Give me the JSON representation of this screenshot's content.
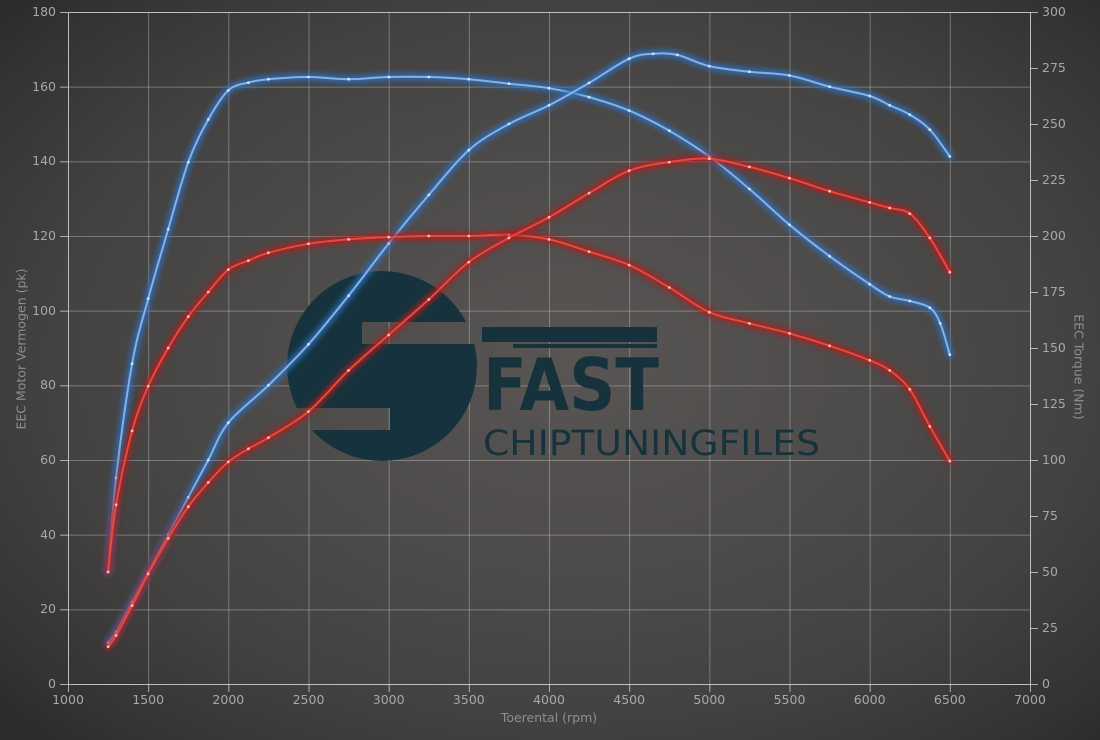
{
  "chart_data": {
    "type": "line",
    "title": "",
    "xlabel": "Toerental (rpm)",
    "ylabel_left": "EEC Motor Vermogen (pk)",
    "ylabel_right": "EEC Torque (Nm)",
    "xlim": [
      1000,
      7000
    ],
    "ylim_left": [
      0,
      180
    ],
    "ylim_right": [
      0,
      300
    ],
    "x_ticks": [
      1000,
      1500,
      2000,
      2500,
      3000,
      3500,
      4000,
      4500,
      5000,
      5500,
      6000,
      6500,
      7000
    ],
    "y_ticks_left": [
      0,
      20,
      40,
      60,
      80,
      100,
      120,
      140,
      160,
      180
    ],
    "y_ticks_right": [
      0,
      25,
      50,
      75,
      100,
      125,
      150,
      175,
      200,
      225,
      250,
      275,
      300
    ],
    "grid": true,
    "legend": "none",
    "series": [
      {
        "id": "blue-torque",
        "unit": "Nm",
        "axis": "right",
        "color_core": "#84b2e4",
        "color_glow": "#2e6fc0",
        "color_dot": "#d9e8f8",
        "points": [
          [
            1250,
            50
          ],
          [
            1300,
            92
          ],
          [
            1400,
            143
          ],
          [
            1500,
            172
          ],
          [
            1625,
            203
          ],
          [
            1750,
            233
          ],
          [
            1875,
            252
          ],
          [
            2000,
            265
          ],
          [
            2125,
            268.5
          ],
          [
            2250,
            270
          ],
          [
            2500,
            271
          ],
          [
            2750,
            270
          ],
          [
            3000,
            271
          ],
          [
            3250,
            271
          ],
          [
            3500,
            270
          ],
          [
            3750,
            268
          ],
          [
            4000,
            266
          ],
          [
            4250,
            262
          ],
          [
            4500,
            256
          ],
          [
            4750,
            247
          ],
          [
            5000,
            235.5
          ],
          [
            5250,
            221
          ],
          [
            5500,
            205
          ],
          [
            5750,
            191
          ],
          [
            6000,
            178.5
          ],
          [
            6125,
            173
          ],
          [
            6250,
            171
          ],
          [
            6375,
            168
          ],
          [
            6440,
            161
          ],
          [
            6500,
            147
          ]
        ]
      },
      {
        "id": "blue-power",
        "unit": "pk",
        "axis": "left",
        "color_core": "#84b2e4",
        "color_glow": "#2e6fc0",
        "color_dot": "#d9e8f8",
        "points": [
          [
            1250,
            11
          ],
          [
            1300,
            14
          ],
          [
            1400,
            22
          ],
          [
            1500,
            30
          ],
          [
            1625,
            40
          ],
          [
            1750,
            50
          ],
          [
            1875,
            60
          ],
          [
            2000,
            70
          ],
          [
            2250,
            80
          ],
          [
            2500,
            91
          ],
          [
            2750,
            104
          ],
          [
            3000,
            118
          ],
          [
            3250,
            131
          ],
          [
            3500,
            143
          ],
          [
            3750,
            150
          ],
          [
            4000,
            155
          ],
          [
            4250,
            161
          ],
          [
            4500,
            167.5
          ],
          [
            4650,
            168.8
          ],
          [
            4800,
            168.5
          ],
          [
            5000,
            165.5
          ],
          [
            5250,
            164
          ],
          [
            5500,
            163
          ],
          [
            5750,
            160
          ],
          [
            6000,
            157.5
          ],
          [
            6125,
            155
          ],
          [
            6250,
            152.5
          ],
          [
            6375,
            148.5
          ],
          [
            6500,
            141.3
          ]
        ]
      },
      {
        "id": "red-torque",
        "unit": "Nm",
        "axis": "right",
        "color_core": "#e8493f",
        "color_glow": "#b01c1c",
        "color_dot": "#ffc9c0",
        "points": [
          [
            1250,
            50
          ],
          [
            1300,
            80
          ],
          [
            1400,
            113
          ],
          [
            1500,
            133
          ],
          [
            1625,
            150
          ],
          [
            1750,
            164
          ],
          [
            1875,
            175
          ],
          [
            2000,
            185
          ],
          [
            2125,
            189
          ],
          [
            2250,
            192.5
          ],
          [
            2500,
            196.5
          ],
          [
            2750,
            198.5
          ],
          [
            3000,
            199.5
          ],
          [
            3250,
            200
          ],
          [
            3500,
            200
          ],
          [
            3750,
            200.5
          ],
          [
            4000,
            198.5
          ],
          [
            4250,
            193
          ],
          [
            4500,
            187
          ],
          [
            4750,
            177
          ],
          [
            5000,
            166
          ],
          [
            5250,
            161
          ],
          [
            5500,
            156.5
          ],
          [
            5750,
            151
          ],
          [
            6000,
            144.5
          ],
          [
            6125,
            140
          ],
          [
            6250,
            131.5
          ],
          [
            6375,
            115
          ],
          [
            6500,
            99.5
          ]
        ]
      },
      {
        "id": "red-power",
        "unit": "pk",
        "axis": "left",
        "color_core": "#e8493f",
        "color_glow": "#b01c1c",
        "color_dot": "#ffc9c0",
        "points": [
          [
            1250,
            10
          ],
          [
            1300,
            13
          ],
          [
            1400,
            21
          ],
          [
            1500,
            29.5
          ],
          [
            1625,
            39
          ],
          [
            1750,
            47.5
          ],
          [
            1875,
            54
          ],
          [
            2000,
            59.5
          ],
          [
            2125,
            63
          ],
          [
            2250,
            66
          ],
          [
            2500,
            73
          ],
          [
            2750,
            84
          ],
          [
            3000,
            93.5
          ],
          [
            3250,
            103
          ],
          [
            3500,
            113
          ],
          [
            3750,
            119.5
          ],
          [
            4000,
            125
          ],
          [
            4250,
            131.5
          ],
          [
            4500,
            137.5
          ],
          [
            4750,
            139.8
          ],
          [
            5000,
            140.7
          ],
          [
            5250,
            138.5
          ],
          [
            5500,
            135.5
          ],
          [
            5750,
            132
          ],
          [
            6000,
            129
          ],
          [
            6125,
            127.5
          ],
          [
            6250,
            126
          ],
          [
            6375,
            119.5
          ],
          [
            6500,
            110.3
          ]
        ]
      }
    ]
  },
  "watermark": {
    "brand": "FAST",
    "wordmark": "CHIPTUNINGFILES",
    "color": "#16333d"
  }
}
